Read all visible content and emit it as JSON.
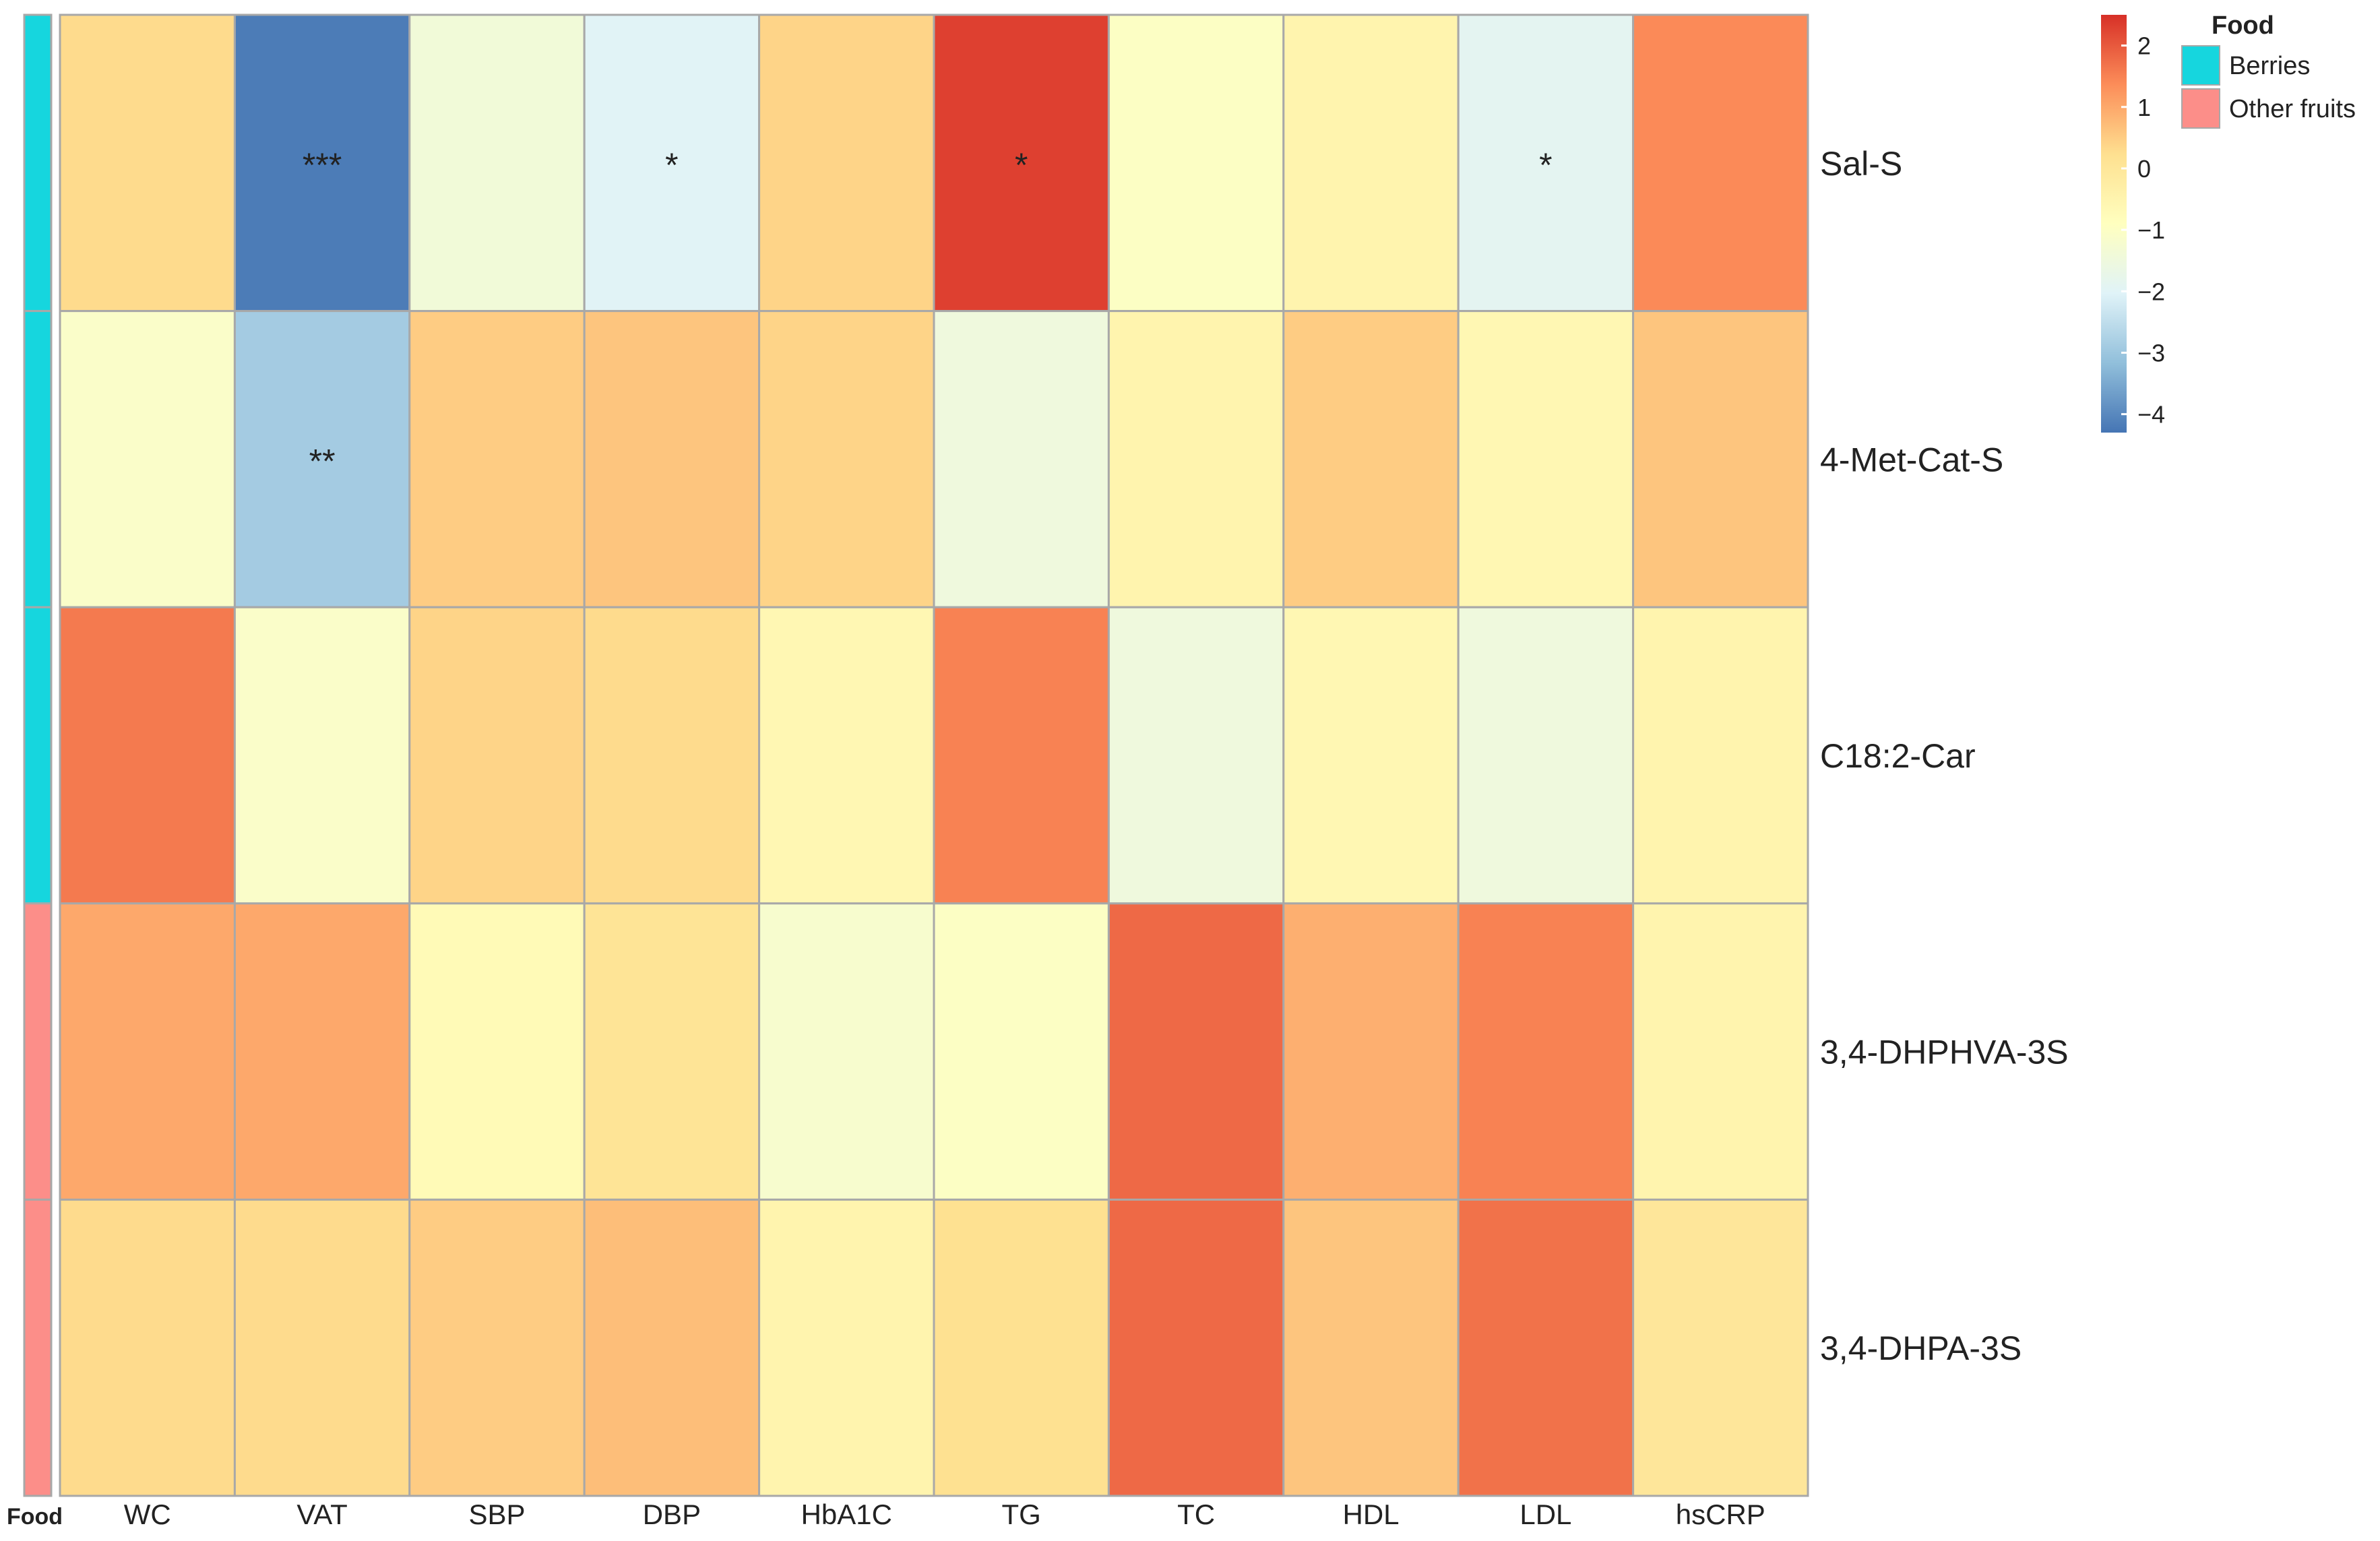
{
  "chart_data": {
    "type": "heatmap",
    "title": "",
    "columns": [
      "WC",
      "VAT",
      "SBP",
      "DBP",
      "HbA1C",
      "TG",
      "TC",
      "HDL",
      "LDL",
      "hsCRP"
    ],
    "rows": [
      "Sal-S",
      "4-Met-Cat-S",
      "C18:2-Car",
      "3,4-DHPHVA-3S",
      "3,4-DHPA-3S"
    ],
    "values": [
      [
        0.3,
        -4.2,
        -1.4,
        -2.0,
        0.4,
        2.3,
        -1.0,
        -0.5,
        -1.9,
        1.4
      ],
      [
        -1.1,
        -2.9,
        0.5,
        0.6,
        0.4,
        -1.5,
        -0.5,
        0.5,
        -0.6,
        0.6
      ],
      [
        1.6,
        -1.1,
        0.4,
        0.3,
        -0.6,
        1.5,
        -1.5,
        -0.6,
        -1.5,
        -0.5
      ],
      [
        1.0,
        1.0,
        -0.7,
        0.1,
        -1.2,
        -1.0,
        1.8,
        0.9,
        1.5,
        -0.5
      ],
      [
        0.3,
        0.3,
        0.5,
        0.7,
        -0.5,
        0.2,
        1.8,
        0.6,
        1.7,
        0.0
      ]
    ],
    "significance": [
      [
        "",
        "***",
        "",
        "*",
        "",
        "*",
        "",
        "",
        "*",
        ""
      ],
      [
        "",
        "**",
        "",
        "",
        "",
        "",
        "",
        "",
        "",
        ""
      ],
      [
        "",
        "",
        "",
        "",
        "",
        "",
        "",
        "",
        "",
        ""
      ],
      [
        "",
        "",
        "",
        "",
        "",
        "",
        "",
        "",
        "",
        ""
      ],
      [
        "",
        "",
        "",
        "",
        "",
        "",
        "",
        "",
        "",
        ""
      ]
    ],
    "row_annotation": {
      "label": "Food",
      "values": [
        "Berries",
        "Berries",
        "Berries",
        "Other fruits",
        "Other fruits"
      ]
    },
    "legend": {
      "title": "Food",
      "items": [
        {
          "name": "Berries",
          "color": "#16D6DE"
        },
        {
          "name": "Other fruits",
          "color": "#FC8E89"
        }
      ]
    },
    "colorbar": {
      "range": [
        -4.3,
        2.5
      ],
      "ticks": [
        2,
        1,
        0,
        -1,
        -2,
        -3,
        -4
      ],
      "tick_labels": [
        "2",
        "1",
        "0",
        "−1",
        "−2",
        "−3",
        "−4"
      ],
      "colors": [
        "#4575B4",
        "#91BFDB",
        "#E0F3F8",
        "#FFFFBF",
        "#FEE090",
        "#FC8D59",
        "#D73027"
      ]
    },
    "colors": {
      "grid": "#A8A8A8",
      "text": "#222222",
      "stars": "#505050"
    }
  }
}
